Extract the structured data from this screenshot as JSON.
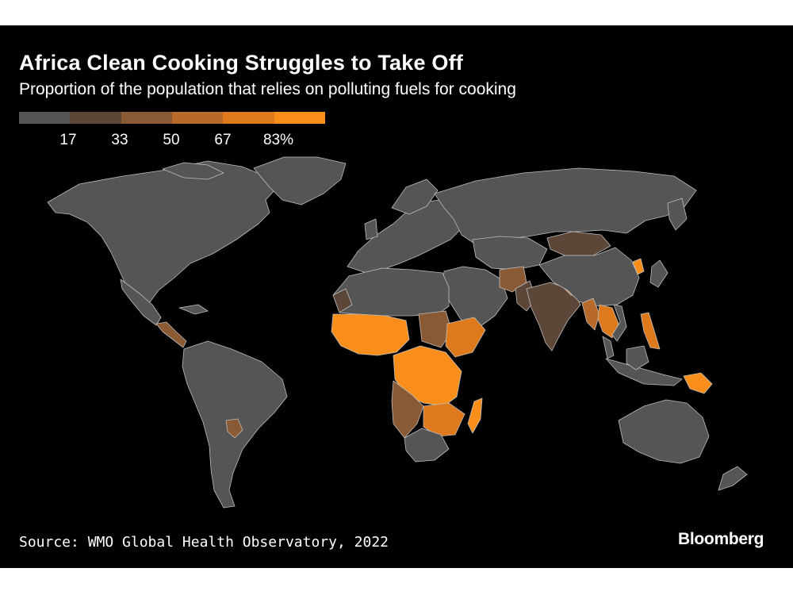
{
  "title": "Africa Clean Cooking Struggles to Take Off",
  "subtitle": "Proportion of the population that relies on polluting fuels for cooking",
  "legend": {
    "ticks": [
      "17",
      "33",
      "50",
      "67",
      "83%"
    ],
    "colors": [
      "#555555",
      "#5c4637",
      "#8a5a34",
      "#b86a2a",
      "#de7a1c",
      "#f98f1a"
    ]
  },
  "source": "Source: WMO Global Health Observatory, 2022",
  "brand": "Bloomberg",
  "colors": {
    "background": "#000000",
    "land_low": "#555555",
    "border": "#bdbdbd",
    "accent": "#f98f1a"
  }
}
